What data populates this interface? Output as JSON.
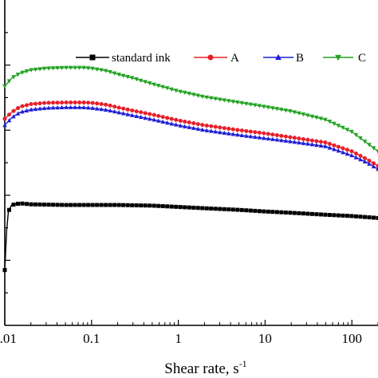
{
  "chart_data": {
    "type": "line",
    "xscale": "log",
    "xlim": [
      0.01,
      200
    ],
    "ylim": [
      0,
      10
    ],
    "x_ticks": [
      0.01,
      0.1,
      1,
      10,
      100
    ],
    "x_tick_labels": [
      "0.01",
      "0.1",
      "1",
      "10",
      "100"
    ],
    "xlabel": "Shear rate, s",
    "xlabel_superscript": "-1",
    "ylabel": "",
    "legend_position": "top-right",
    "grid": false,
    "series": [
      {
        "name": "standard ink",
        "color": "#000000",
        "marker": "square",
        "x": [
          0.01,
          0.0105,
          0.011,
          0.012,
          0.015,
          0.02,
          0.05,
          0.1,
          0.2,
          0.5,
          1,
          2,
          5,
          10,
          20,
          50,
          100,
          200
        ],
        "y": [
          1.7,
          2.9,
          3.5,
          3.7,
          3.75,
          3.72,
          3.7,
          3.7,
          3.7,
          3.68,
          3.64,
          3.6,
          3.55,
          3.5,
          3.46,
          3.4,
          3.36,
          3.3
        ]
      },
      {
        "name": "A",
        "color": "#e8202a",
        "marker": "circle",
        "x": [
          0.01,
          0.012,
          0.015,
          0.02,
          0.03,
          0.05,
          0.08,
          0.1,
          0.15,
          0.2,
          0.3,
          0.5,
          1,
          2,
          5,
          10,
          20,
          50,
          100,
          150,
          200
        ],
        "y": [
          6.35,
          6.55,
          6.72,
          6.8,
          6.84,
          6.85,
          6.85,
          6.84,
          6.78,
          6.7,
          6.6,
          6.48,
          6.3,
          6.15,
          6.0,
          5.9,
          5.78,
          5.62,
          5.35,
          5.1,
          4.9
        ]
      },
      {
        "name": "B",
        "color": "#1f1fd6",
        "marker": "triangle-up",
        "x": [
          0.01,
          0.012,
          0.015,
          0.02,
          0.03,
          0.05,
          0.08,
          0.1,
          0.15,
          0.2,
          0.3,
          0.5,
          1,
          2,
          5,
          10,
          20,
          50,
          100,
          150,
          200
        ],
        "y": [
          6.15,
          6.38,
          6.55,
          6.63,
          6.68,
          6.7,
          6.7,
          6.68,
          6.62,
          6.55,
          6.45,
          6.33,
          6.15,
          6.0,
          5.85,
          5.75,
          5.65,
          5.5,
          5.22,
          5.0,
          4.8
        ]
      },
      {
        "name": "C",
        "color": "#22a222",
        "marker": "triangle-down",
        "x": [
          0.01,
          0.012,
          0.015,
          0.02,
          0.03,
          0.05,
          0.08,
          0.1,
          0.15,
          0.2,
          0.3,
          0.5,
          1,
          2,
          5,
          10,
          20,
          50,
          100,
          150,
          200
        ],
        "y": [
          7.35,
          7.6,
          7.75,
          7.85,
          7.9,
          7.92,
          7.92,
          7.9,
          7.82,
          7.72,
          7.6,
          7.42,
          7.2,
          7.02,
          6.85,
          6.72,
          6.58,
          6.32,
          5.95,
          5.6,
          5.35
        ]
      }
    ]
  }
}
